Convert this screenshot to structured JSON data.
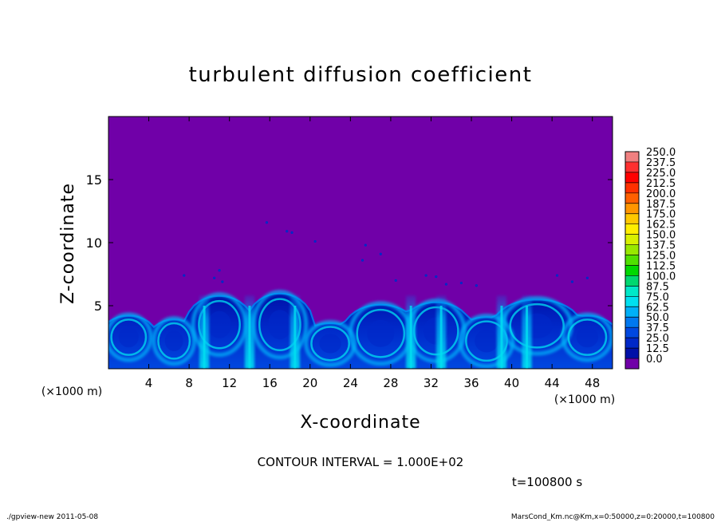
{
  "chart_data": {
    "type": "heatmap",
    "title": "turbulent diffusion coefficient",
    "xlabel": "X-coordinate",
    "ylabel": "Z-coordinate",
    "x_unit_label": "(×1000 m)",
    "y_unit_label": "(×1000 m)",
    "xlim": [
      0,
      50
    ],
    "ylim": [
      0,
      20
    ],
    "x_ticks": [
      "4",
      "8",
      "12",
      "16",
      "20",
      "24",
      "28",
      "32",
      "36",
      "40",
      "44",
      "48"
    ],
    "x_tick_values": [
      4,
      8,
      12,
      16,
      20,
      24,
      28,
      32,
      36,
      40,
      44,
      48
    ],
    "y_ticks": [
      "5",
      "10",
      "15"
    ],
    "y_tick_values": [
      5,
      10,
      15
    ],
    "contour_interval": "CONTOUR INTERVAL = 1.000E+02",
    "time_label": "t=100800 s",
    "colorbar": {
      "levels": [
        "250.0",
        "237.5",
        "225.0",
        "212.5",
        "200.0",
        "187.5",
        "175.0",
        "162.5",
        "150.0",
        "137.5",
        "125.0",
        "112.5",
        "100.0",
        "87.5",
        "75.0",
        "62.5",
        "50.0",
        "37.5",
        "25.0",
        "12.5",
        "0.0"
      ],
      "colors": [
        "#f08080",
        "#ff3030",
        "#ff0000",
        "#ff3000",
        "#ff6000",
        "#ff9600",
        "#ffc800",
        "#ffee00",
        "#d8f000",
        "#98e800",
        "#50e000",
        "#00d800",
        "#00d870",
        "#00e8c8",
        "#00e0f0",
        "#00b0f8",
        "#0078f0",
        "#0048e0",
        "#0028c8",
        "#0010a8",
        "#7000a8"
      ]
    },
    "field": {
      "background_value": 0.0,
      "background_color": "#7000a8",
      "turbulent_layer_top_km": 6.2,
      "plumes_x_km": [
        9.5,
        14,
        18.5,
        30,
        33,
        39,
        41.5
      ],
      "eddies": [
        {
          "x": 2.0,
          "z": 2.5,
          "rx": 2.2,
          "rz": 1.8
        },
        {
          "x": 6.5,
          "z": 2.2,
          "rx": 2.0,
          "rz": 1.8
        },
        {
          "x": 11.0,
          "z": 3.5,
          "rx": 2.6,
          "rz": 2.4
        },
        {
          "x": 17.0,
          "z": 3.5,
          "rx": 2.6,
          "rz": 2.6
        },
        {
          "x": 22.0,
          "z": 2.0,
          "rx": 2.4,
          "rz": 1.7
        },
        {
          "x": 27.0,
          "z": 2.8,
          "rx": 3.0,
          "rz": 2.4
        },
        {
          "x": 32.5,
          "z": 3.0,
          "rx": 2.8,
          "rz": 2.4
        },
        {
          "x": 37.5,
          "z": 2.2,
          "rx": 2.6,
          "rz": 2.0
        },
        {
          "x": 42.5,
          "z": 3.4,
          "rx": 3.4,
          "rz": 2.2
        },
        {
          "x": 47.5,
          "z": 2.5,
          "rx": 2.4,
          "rz": 1.8
        }
      ],
      "specks": [
        {
          "x": 11.0,
          "z": 7.8
        },
        {
          "x": 10.5,
          "z": 7.2
        },
        {
          "x": 11.3,
          "z": 6.9
        },
        {
          "x": 7.5,
          "z": 7.4
        },
        {
          "x": 15.7,
          "z": 11.6
        },
        {
          "x": 17.7,
          "z": 10.9
        },
        {
          "x": 18.2,
          "z": 10.8
        },
        {
          "x": 25.5,
          "z": 9.8
        },
        {
          "x": 25.2,
          "z": 8.6
        },
        {
          "x": 27.0,
          "z": 9.1
        },
        {
          "x": 31.5,
          "z": 7.4
        },
        {
          "x": 32.5,
          "z": 7.3
        },
        {
          "x": 33.5,
          "z": 6.7
        },
        {
          "x": 35.0,
          "z": 6.8
        },
        {
          "x": 36.5,
          "z": 6.6
        },
        {
          "x": 28.5,
          "z": 7.0
        },
        {
          "x": 44.5,
          "z": 7.4
        },
        {
          "x": 46.0,
          "z": 6.9
        },
        {
          "x": 47.5,
          "z": 7.2
        },
        {
          "x": 20.5,
          "z": 10.1
        }
      ]
    }
  },
  "footer": {
    "left": "./gpview-new  2011-05-08",
    "right": "MarsCond_Km.nc@Km,x=0:50000,z=0:20000,t=100800"
  }
}
